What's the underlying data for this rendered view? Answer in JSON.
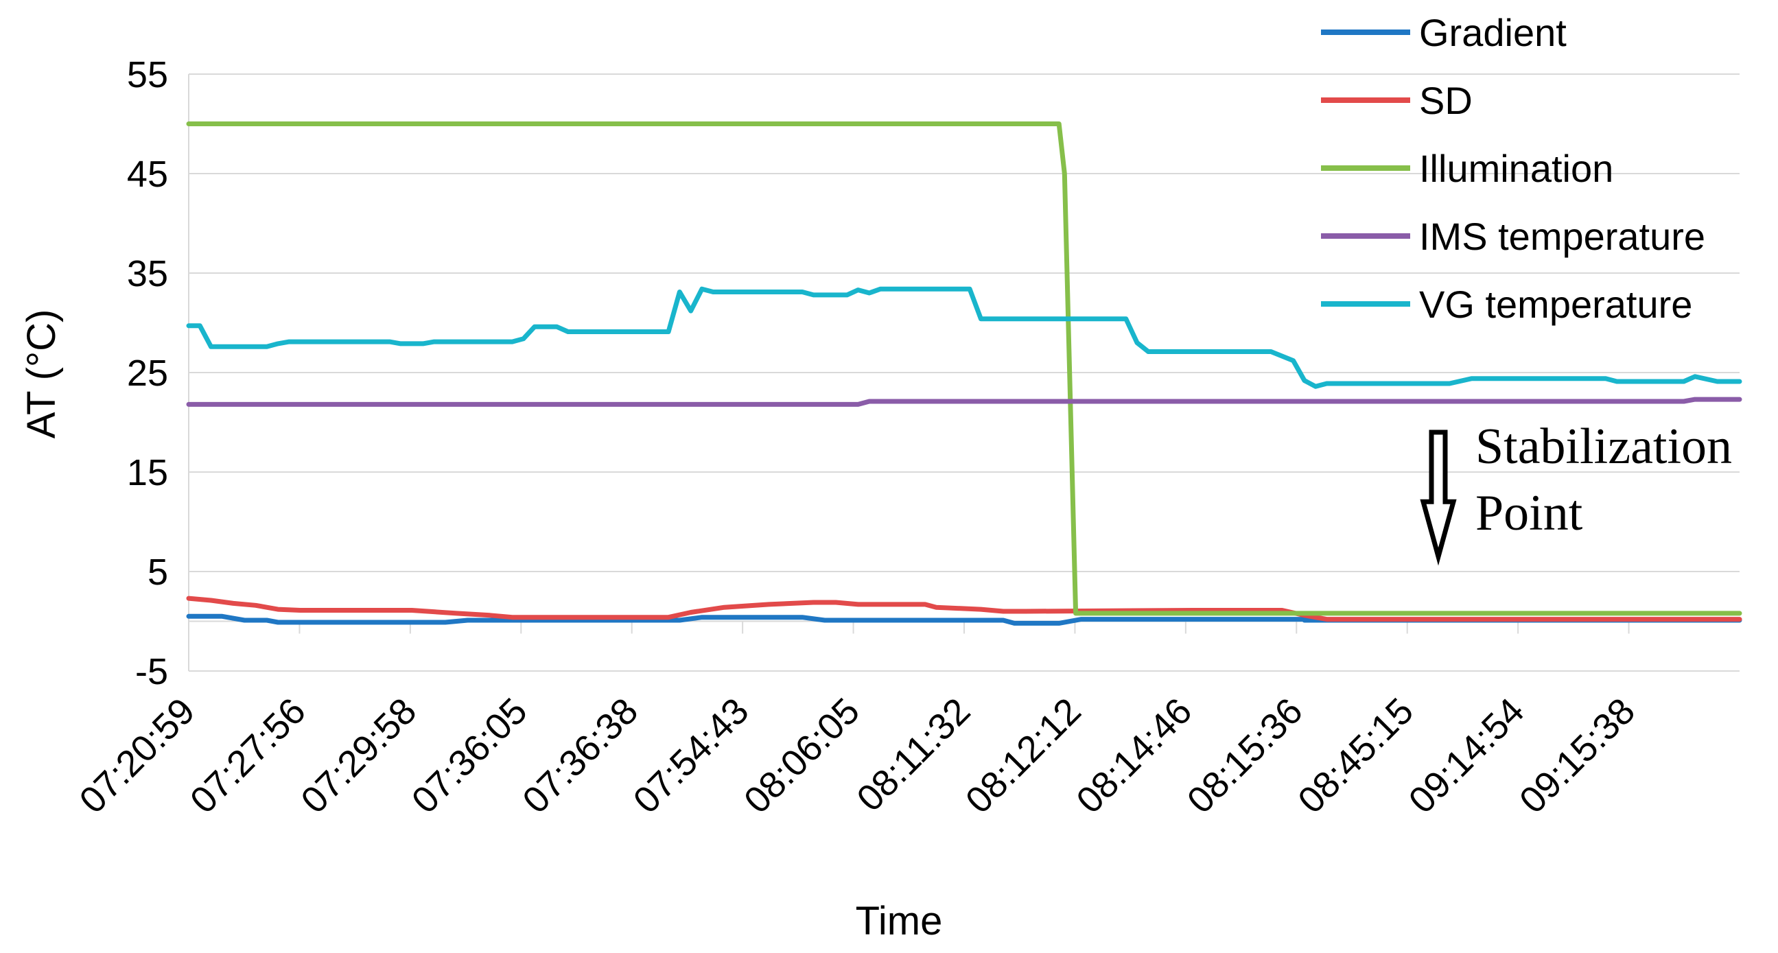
{
  "chart_data": {
    "type": "line",
    "title": "",
    "xlabel": "Time",
    "ylabel": "AT (°C)",
    "ylim": [
      -5,
      55
    ],
    "yticks": [
      -5,
      5,
      15,
      25,
      35,
      45,
      55
    ],
    "grid": true,
    "legend_position": "top-right",
    "x_tick_labels": [
      "07:20:59",
      "07:27:56",
      "07:29:58",
      "07:36:05",
      "07:36:38",
      "07:54:43",
      "08:06:05",
      "08:11:32",
      "08:12:12",
      "08:14:46",
      "08:15:36",
      "08:45:15",
      "09:14:54",
      "09:15:38"
    ],
    "n_points": 140,
    "series": [
      {
        "name": "Gradient",
        "color": "#1f77c4",
        "points": [
          [
            0,
            0.5
          ],
          [
            3,
            0.5
          ],
          [
            5,
            0.1
          ],
          [
            7,
            0.1
          ],
          [
            8,
            -0.1
          ],
          [
            15,
            -0.1
          ],
          [
            23,
            -0.1
          ],
          [
            25,
            0.1
          ],
          [
            42,
            0.1
          ],
          [
            44,
            0.1
          ],
          [
            46,
            0.4
          ],
          [
            55,
            0.4
          ],
          [
            57,
            0.1
          ],
          [
            71,
            0.1
          ],
          [
            73,
            0.1
          ],
          [
            74,
            -0.2
          ],
          [
            78,
            -0.2
          ],
          [
            80,
            0.2
          ],
          [
            100,
            0.2
          ],
          [
            100,
            0.1
          ],
          [
            139,
            0.1
          ]
        ]
      },
      {
        "name": "SD",
        "color": "#e24a4a",
        "points": [
          [
            0,
            2.3
          ],
          [
            2,
            2.1
          ],
          [
            4,
            1.8
          ],
          [
            6,
            1.6
          ],
          [
            8,
            1.2
          ],
          [
            10,
            1.1
          ],
          [
            20,
            1.1
          ],
          [
            24,
            0.8
          ],
          [
            27,
            0.6
          ],
          [
            29,
            0.4
          ],
          [
            43,
            0.4
          ],
          [
            45,
            0.9
          ],
          [
            48,
            1.4
          ],
          [
            52,
            1.7
          ],
          [
            56,
            1.9
          ],
          [
            58,
            1.9
          ],
          [
            60,
            1.7
          ],
          [
            66,
            1.7
          ],
          [
            67,
            1.4
          ],
          [
            71,
            1.2
          ],
          [
            73,
            1.0
          ],
          [
            75,
            1.0
          ],
          [
            90,
            1.1
          ],
          [
            98,
            1.1
          ],
          [
            100,
            0.6
          ],
          [
            102,
            0.2
          ],
          [
            139,
            0.2
          ]
        ]
      },
      {
        "name": "Illumination",
        "color": "#86bf4a",
        "points": [
          [
            0,
            50
          ],
          [
            78,
            50
          ],
          [
            78.5,
            45
          ],
          [
            79.5,
            0.8
          ],
          [
            139,
            0.8
          ]
        ]
      },
      {
        "name": "IMS temperature",
        "color": "#8a5ca8",
        "points": [
          [
            0,
            21.8
          ],
          [
            60,
            21.8
          ],
          [
            61,
            22.1
          ],
          [
            134,
            22.1
          ],
          [
            135,
            22.3
          ],
          [
            139,
            22.3
          ]
        ]
      },
      {
        "name": "VG temperature",
        "color": "#19b5cc",
        "points": [
          [
            0,
            29.7
          ],
          [
            1,
            29.7
          ],
          [
            2,
            27.6
          ],
          [
            7,
            27.6
          ],
          [
            8,
            27.9
          ],
          [
            9,
            28.1
          ],
          [
            18,
            28.1
          ],
          [
            19,
            27.9
          ],
          [
            21,
            27.9
          ],
          [
            22,
            28.1
          ],
          [
            29,
            28.1
          ],
          [
            30,
            28.4
          ],
          [
            31,
            29.6
          ],
          [
            33,
            29.6
          ],
          [
            34,
            29.1
          ],
          [
            43,
            29.1
          ],
          [
            44,
            33.1
          ],
          [
            45,
            31.2
          ],
          [
            46,
            33.4
          ],
          [
            47,
            33.1
          ],
          [
            55,
            33.1
          ],
          [
            56,
            32.8
          ],
          [
            59,
            32.8
          ],
          [
            60,
            33.3
          ],
          [
            61,
            33.0
          ],
          [
            62,
            33.4
          ],
          [
            70,
            33.4
          ],
          [
            71,
            30.4
          ],
          [
            84,
            30.4
          ],
          [
            85,
            28.0
          ],
          [
            86,
            27.1
          ],
          [
            97,
            27.1
          ],
          [
            99,
            26.2
          ],
          [
            100,
            24.2
          ],
          [
            101,
            23.6
          ],
          [
            102,
            23.9
          ],
          [
            113,
            23.9
          ],
          [
            115,
            24.4
          ],
          [
            127,
            24.4
          ],
          [
            128,
            24.1
          ],
          [
            134,
            24.1
          ],
          [
            135,
            24.6
          ],
          [
            137,
            24.1
          ],
          [
            139,
            24.1
          ]
        ]
      }
    ],
    "annotation": {
      "lines": [
        "Stabilization",
        "Point"
      ],
      "arrow_x_index": 112,
      "arrow_y_from": 19,
      "arrow_y_to": 6.5
    }
  }
}
